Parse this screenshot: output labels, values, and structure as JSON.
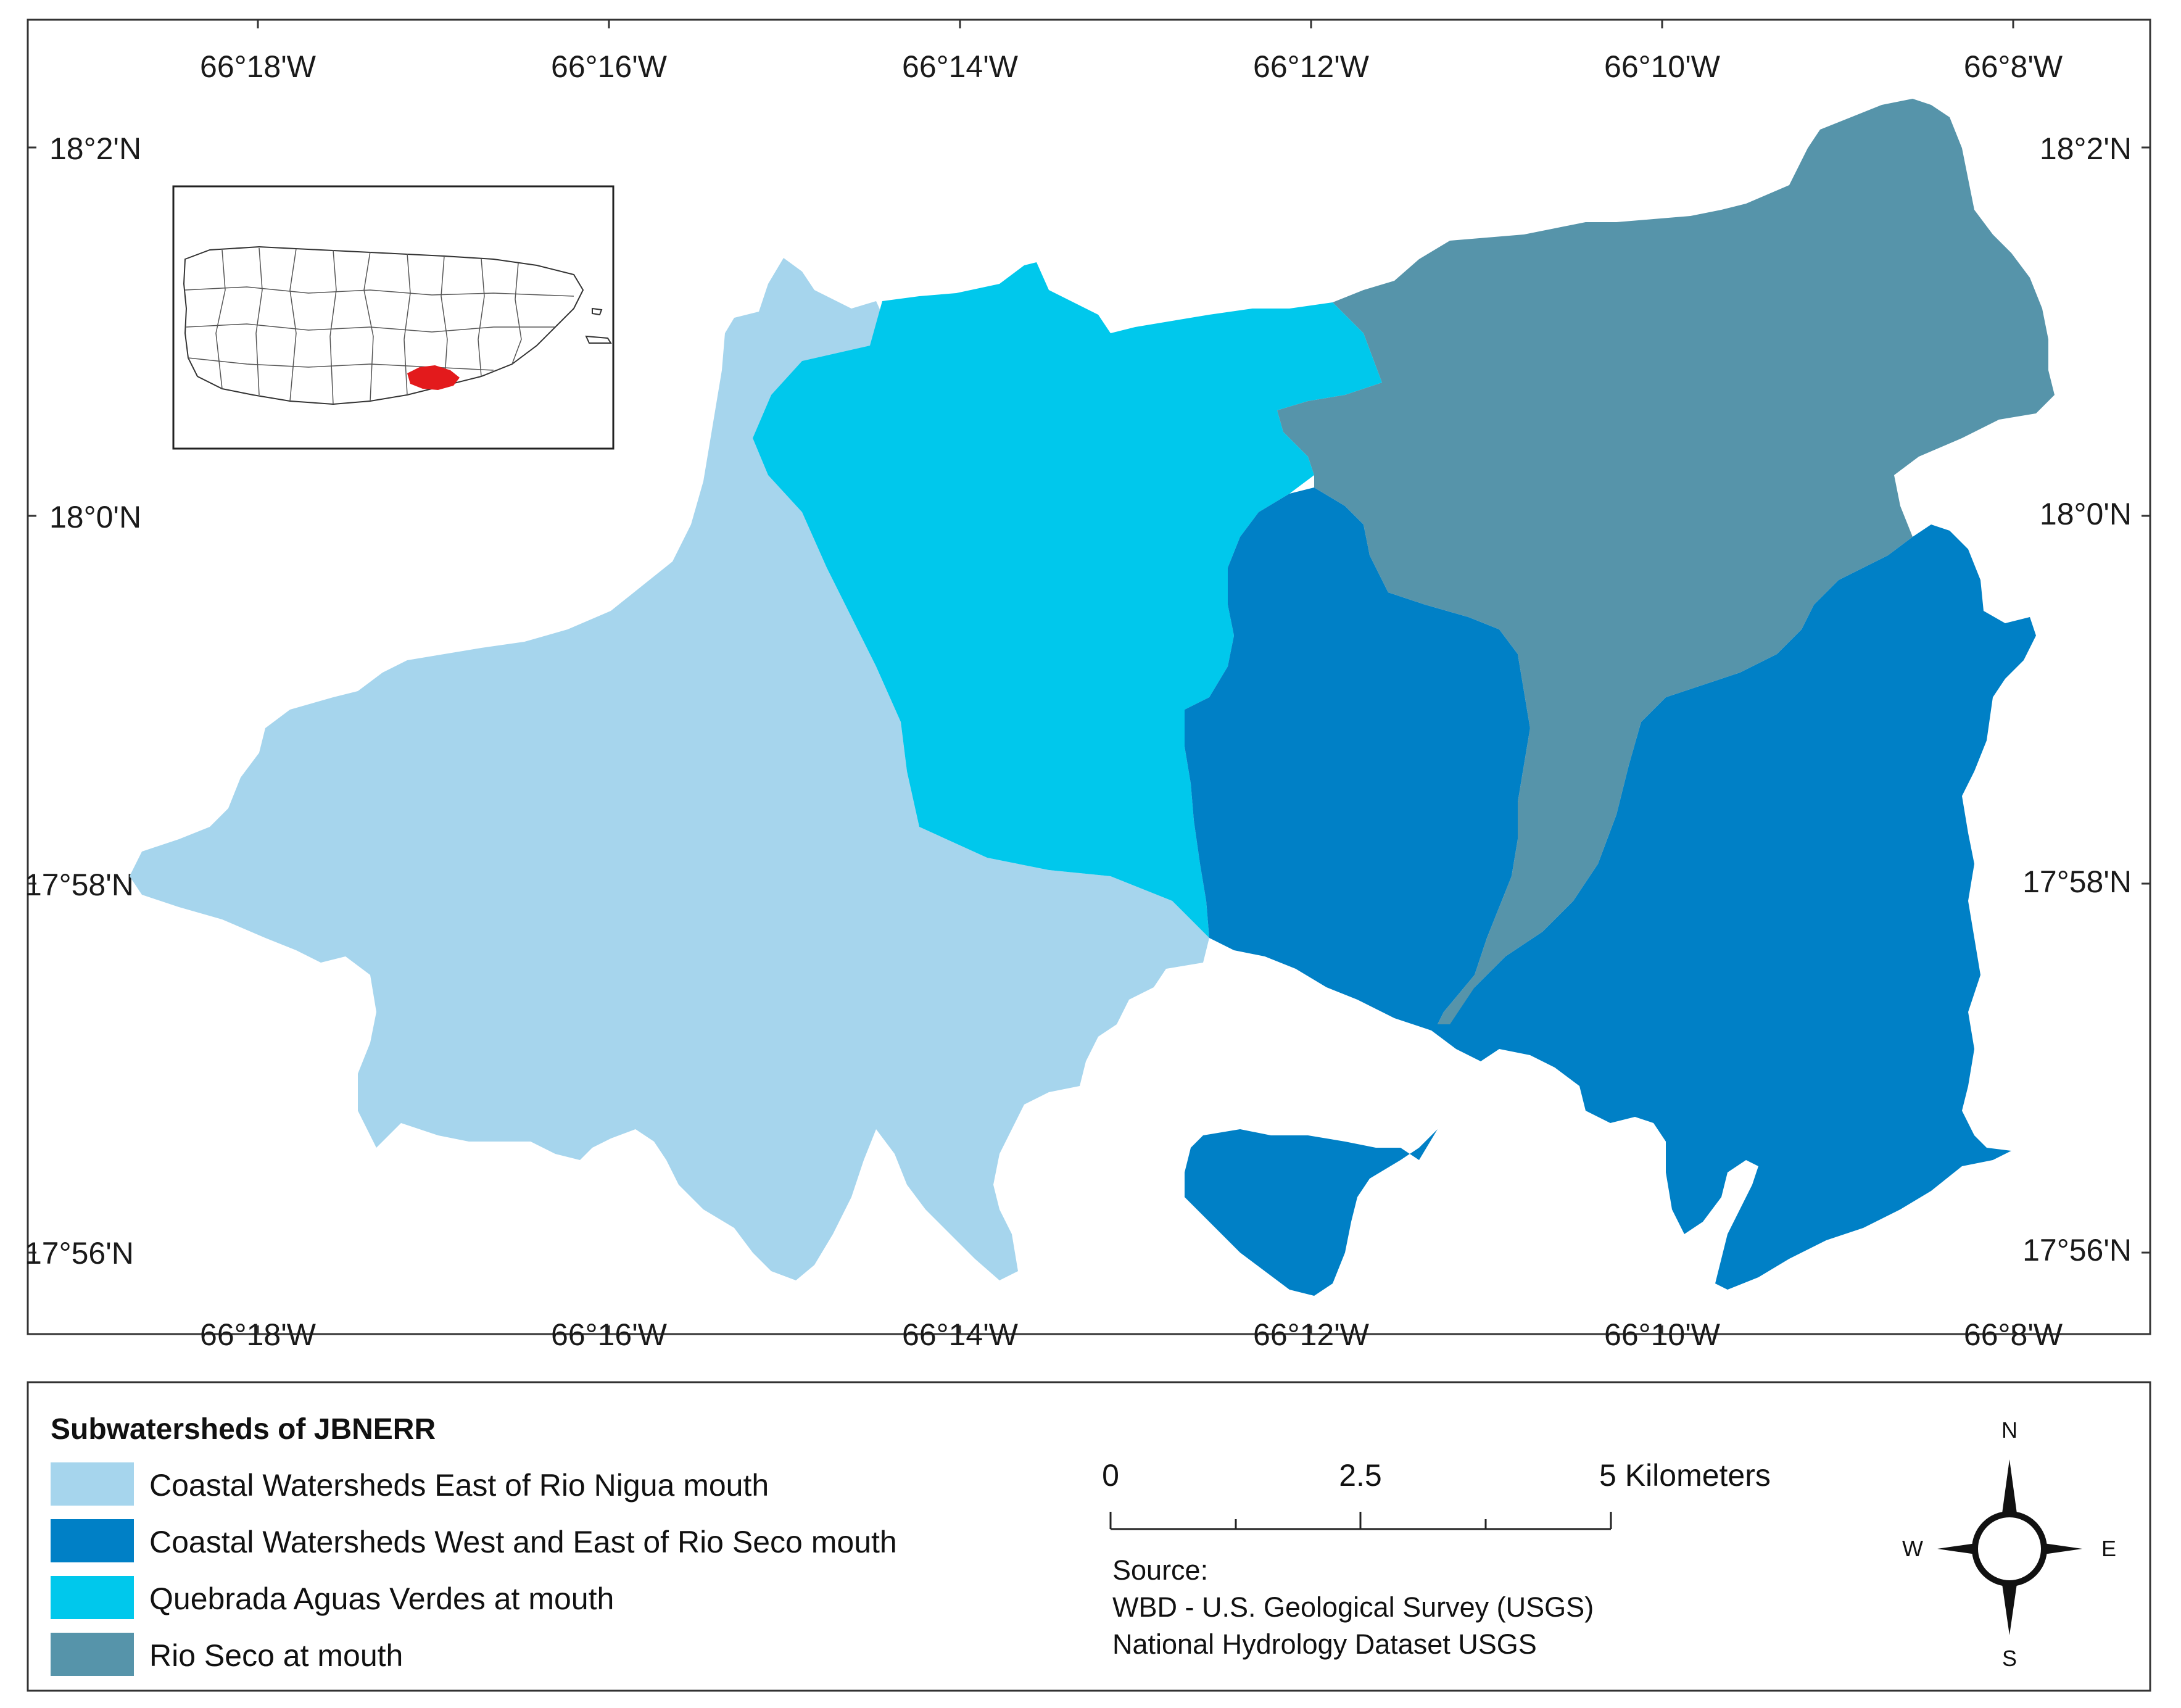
{
  "map": {
    "grid_labels": {
      "longitudes": [
        "66°18'W",
        "66°16'W",
        "66°14'W",
        "66°12'W",
        "66°10'W",
        "66°8'W"
      ],
      "latitudes": [
        "18°2'N",
        "18°0'N",
        "17°58'N",
        "17°56'N"
      ]
    },
    "regions": [
      {
        "name": "Coastal Watersheds East of Rio Nigua mouth",
        "color": "#a6d5ed"
      },
      {
        "name": "Coastal Watersheds West and East of Rio Seco mouth",
        "color": "#0080c6"
      },
      {
        "name": "Quebrada Aguas Verdes at mouth",
        "color": "#00c8ec"
      },
      {
        "name": "Rio Seco at mouth",
        "color": "#5694aa"
      }
    ],
    "inset": {
      "highlight_color": "#e31a1c"
    }
  },
  "legend": {
    "title": "Subwatersheds of JBNERR",
    "items": [
      {
        "label": "Coastal Watersheds East of Rio Nigua mouth",
        "color": "#a6d5ed"
      },
      {
        "label": "Coastal Watersheds West and East of Rio Seco mouth",
        "color": "#0080c6"
      },
      {
        "label": "Quebrada Aguas Verdes at mouth",
        "color": "#00c8ec"
      },
      {
        "label": "Rio Seco at mouth",
        "color": "#5694aa"
      }
    ]
  },
  "scale_bar": {
    "labels": [
      "0",
      "2.5",
      "5 Kilometers"
    ]
  },
  "source": {
    "heading": "Source:",
    "line1": "WBD - U.S. Geological Survey (USGS)",
    "line2": "National Hydrology Dataset USGS"
  },
  "north_arrow": {
    "n": "N",
    "s": "S",
    "e": "E",
    "w": "W"
  }
}
